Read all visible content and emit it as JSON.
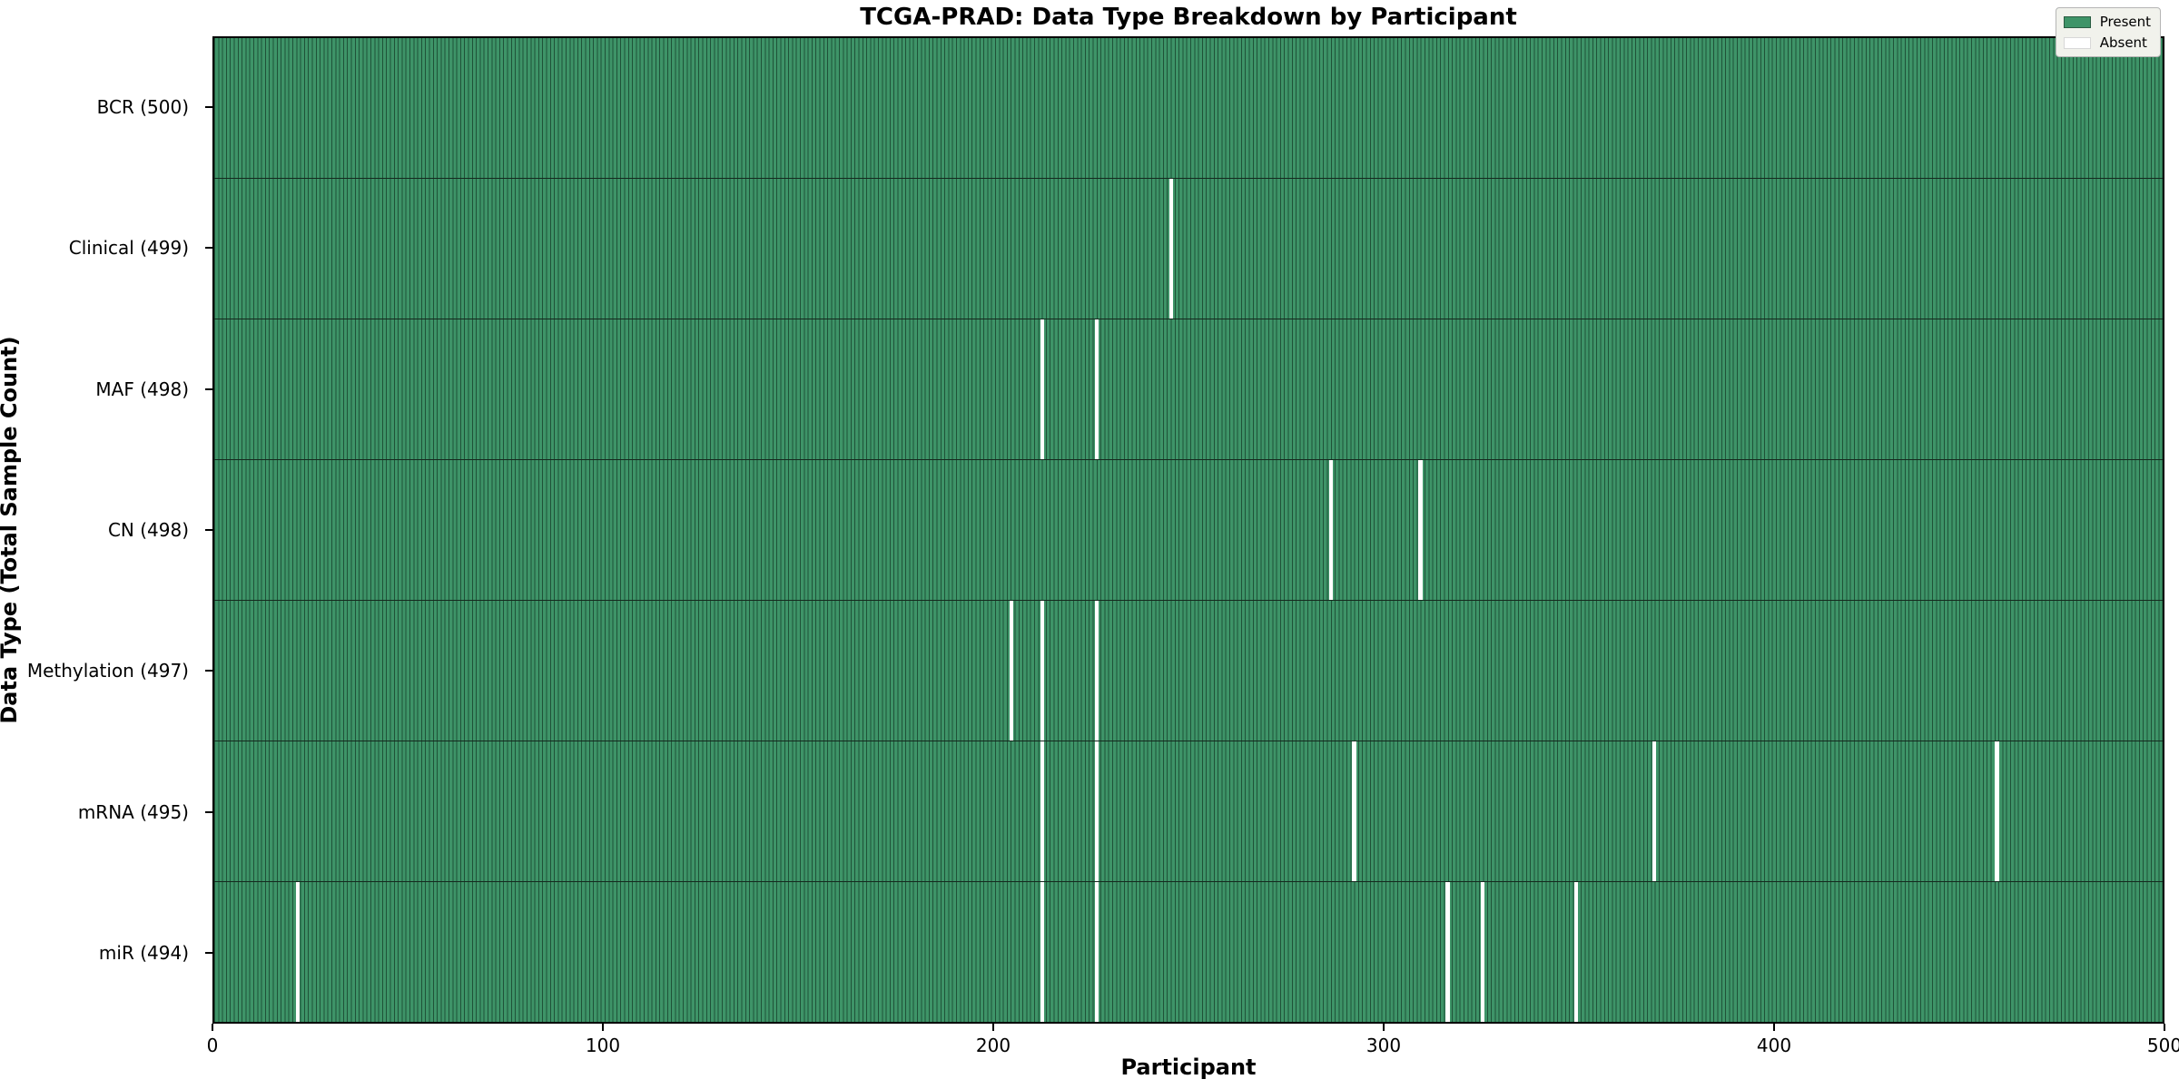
{
  "title": "TCGA-PRAD: Data Type Breakdown by Participant",
  "x_axis_label": "Participant",
  "y_axis_label": "Data Type (Total Sample Count)",
  "legend": {
    "present_label": "Present",
    "absent_label": "Absent"
  },
  "colors": {
    "present_fill": "#3e9468",
    "cell_edge": "#1f5238",
    "row_divider": "#15291e",
    "absent_fill": "#ffffff",
    "legend_bg": "#f1f2ec"
  },
  "chart_data": {
    "type": "heatmap",
    "title": "TCGA-PRAD: Data Type Breakdown by Participant",
    "xlabel": "Participant",
    "ylabel": "Data Type (Total Sample Count)",
    "x_range": [
      0,
      500
    ],
    "x_ticks": [
      0,
      100,
      200,
      300,
      400,
      500
    ],
    "total_participants": 500,
    "legend_entries": [
      "Present",
      "Absent"
    ],
    "legend_position": "upper right",
    "grid": false,
    "rows": [
      {
        "name": "BCR",
        "label": "BCR (500)",
        "count": 500,
        "absent_participants": []
      },
      {
        "name": "Clinical",
        "label": "Clinical (499)",
        "count": 499,
        "absent_participants": [
          245
        ]
      },
      {
        "name": "MAF",
        "label": "MAF (498)",
        "count": 498,
        "absent_participants": [
          212,
          226
        ]
      },
      {
        "name": "CN",
        "label": "CN (498)",
        "count": 498,
        "absent_participants": [
          286,
          309
        ]
      },
      {
        "name": "Methylation",
        "label": "Methylation (497)",
        "count": 497,
        "absent_participants": [
          204,
          212,
          226
        ]
      },
      {
        "name": "mRNA",
        "label": "mRNA (495)",
        "count": 495,
        "absent_participants": [
          212,
          226,
          292,
          369,
          457
        ]
      },
      {
        "name": "miR",
        "label": "miR (494)",
        "count": 494,
        "absent_participants": [
          21,
          212,
          226,
          316,
          325,
          349
        ]
      }
    ]
  }
}
